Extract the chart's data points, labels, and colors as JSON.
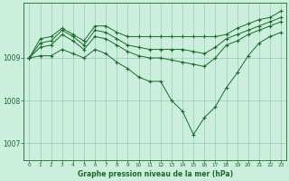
{
  "background_color": "#cceedd",
  "grid_color": "#99ccbb",
  "line_color": "#1a6b2a",
  "title": "Graphe pression niveau de la mer (hPa)",
  "xlim": [
    -0.5,
    23.5
  ],
  "ylim": [
    1006.6,
    1010.3
  ],
  "yticks": [
    1007,
    1008,
    1009
  ],
  "xticks": [
    0,
    1,
    2,
    3,
    4,
    5,
    6,
    7,
    8,
    9,
    10,
    11,
    12,
    13,
    14,
    15,
    16,
    17,
    18,
    19,
    20,
    21,
    22,
    23
  ],
  "series": [
    {
      "x": [
        0,
        1,
        2,
        3,
        4,
        5,
        6,
        7,
        8,
        9,
        10,
        11,
        12,
        13,
        14,
        15,
        16,
        17,
        18,
        19,
        20,
        21,
        22,
        23
      ],
      "y": [
        1009.0,
        1009.45,
        1009.5,
        1009.7,
        1009.55,
        1009.4,
        1009.75,
        1009.75,
        1009.6,
        1009.5,
        1009.5,
        1009.5,
        1009.5,
        1009.5,
        1009.5,
        1009.5,
        1009.5,
        1009.5,
        1009.55,
        1009.7,
        1009.8,
        1009.9,
        1009.95,
        1010.1
      ]
    },
    {
      "x": [
        0,
        1,
        2,
        3,
        4,
        5,
        6,
        7,
        8,
        9,
        10,
        11,
        12,
        13,
        14,
        15,
        16,
        17,
        18,
        19,
        20,
        21,
        22,
        23
      ],
      "y": [
        1009.0,
        1009.35,
        1009.4,
        1009.65,
        1009.5,
        1009.3,
        1009.65,
        1009.6,
        1009.45,
        1009.3,
        1009.25,
        1009.2,
        1009.2,
        1009.2,
        1009.2,
        1009.15,
        1009.1,
        1009.25,
        1009.45,
        1009.55,
        1009.65,
        1009.75,
        1009.85,
        1009.95
      ]
    },
    {
      "x": [
        0,
        1,
        2,
        3,
        4,
        5,
        6,
        7,
        8,
        9,
        10,
        11,
        12,
        13,
        14,
        15,
        16,
        17,
        18,
        19,
        20,
        21,
        22,
        23
      ],
      "y": [
        1009.0,
        1009.25,
        1009.3,
        1009.55,
        1009.4,
        1009.2,
        1009.5,
        1009.45,
        1009.3,
        1009.15,
        1009.05,
        1009.0,
        1009.0,
        1008.95,
        1008.9,
        1008.85,
        1008.8,
        1009.0,
        1009.3,
        1009.4,
        1009.55,
        1009.65,
        1009.75,
        1009.85
      ]
    },
    {
      "x": [
        0,
        1,
        2,
        3,
        4,
        5,
        6,
        7,
        8,
        9,
        10,
        11,
        12,
        13,
        14,
        15,
        16,
        17,
        18,
        19,
        20,
        21,
        22,
        23
      ],
      "y": [
        1009.0,
        1009.05,
        1009.05,
        1009.2,
        1009.1,
        1009.0,
        1009.2,
        1009.1,
        1008.9,
        1008.75,
        1008.55,
        1008.45,
        1008.45,
        1008.0,
        1007.75,
        1007.2,
        1007.6,
        1007.85,
        1008.3,
        1008.65,
        1009.05,
        1009.35,
        1009.5,
        1009.6
      ]
    }
  ]
}
